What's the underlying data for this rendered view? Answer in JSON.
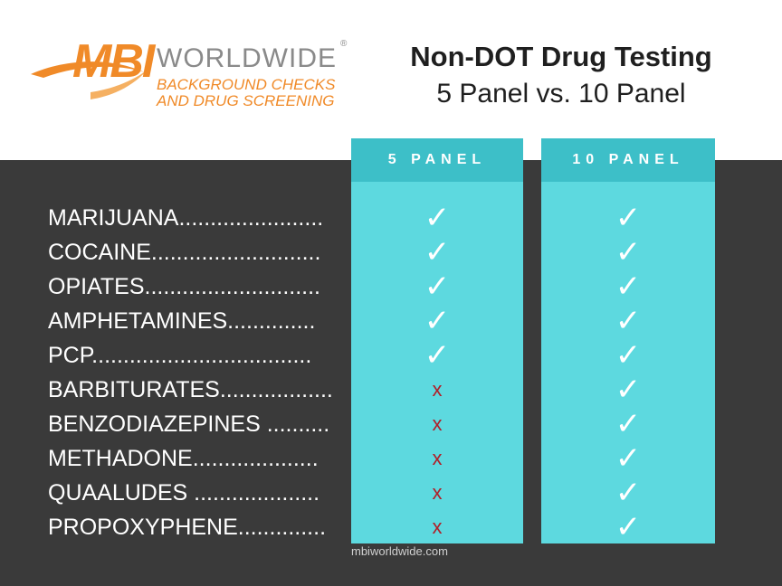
{
  "logo": {
    "brand": "MBI",
    "wordmark": "WORLDWIDE",
    "registered": "®",
    "tagline_line1": "BACKGROUND CHECKS",
    "tagline_line2": "AND DRUG SCREENING",
    "brand_color": "#f08a28"
  },
  "heading": {
    "title": "Non-DOT Drug Testing",
    "subtitle": "5 Panel vs. 10 Panel"
  },
  "columns": [
    {
      "label": "5 PANEL"
    },
    {
      "label": "10 PANEL"
    }
  ],
  "rows": [
    {
      "drug": "MARIJUANA.......................",
      "five_panel": "✓",
      "ten_panel": "✓"
    },
    {
      "drug": "COCAINE...........................",
      "five_panel": "✓",
      "ten_panel": "✓"
    },
    {
      "drug": "OPIATES............................",
      "five_panel": "✓",
      "ten_panel": "✓"
    },
    {
      "drug": "AMPHETAMINES..............",
      "five_panel": "✓",
      "ten_panel": "✓"
    },
    {
      "drug": "PCP...................................",
      "five_panel": "✓",
      "ten_panel": "✓"
    },
    {
      "drug": "BARBITURATES..................",
      "five_panel": "x",
      "ten_panel": "✓"
    },
    {
      "drug": "BENZODIAZEPINES ..........",
      "five_panel": "x",
      "ten_panel": "✓"
    },
    {
      "drug": "METHADONE....................",
      "five_panel": "x",
      "ten_panel": "✓"
    },
    {
      "drug": "QUAALUDES ....................",
      "five_panel": "x",
      "ten_panel": "✓"
    },
    {
      "drug": "PROPOXYPHENE..............",
      "five_panel": "x",
      "ten_panel": "✓"
    }
  ],
  "footer": {
    "url": "mbiworldwide.com"
  },
  "colors": {
    "background_dark": "#3a3a3a",
    "column_body": "#5dd9df",
    "column_header": "#3dbfc8",
    "cross": "#b0202a"
  }
}
